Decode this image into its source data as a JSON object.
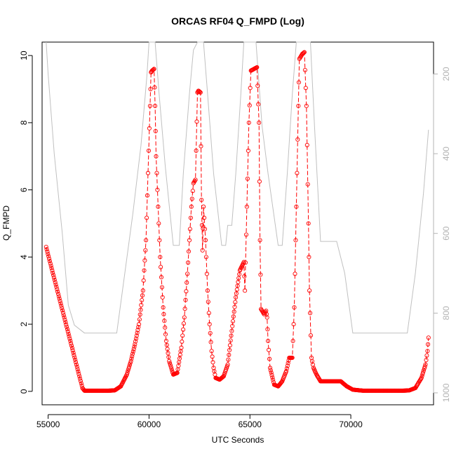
{
  "chart_data": {
    "type": "scatter",
    "title": "ORCAS RF04 Q_FMPD (Log)",
    "xlabel": "UTC Seconds",
    "ylabel": "Q_FMPD",
    "xlim": [
      54700,
      74100
    ],
    "ylim": [
      -0.4,
      10.4
    ],
    "x_ticks": [
      55000,
      60000,
      65000,
      70000
    ],
    "x_tick_labels": [
      "55000",
      "60000",
      "65000",
      "70000"
    ],
    "y_ticks": [
      0,
      2,
      4,
      6,
      8,
      10
    ],
    "y_tick_labels": [
      "0",
      "2",
      "4",
      "6",
      "8",
      "10"
    ],
    "right_axis": {
      "ticks": [
        200,
        400,
        600,
        800,
        1000
      ],
      "tick_labels": [
        "200",
        "400",
        "600",
        "800",
        "1000"
      ],
      "lim": [
        1030,
        120
      ],
      "color": "#b3b3b3"
    },
    "grid": false,
    "legend": "none",
    "series": [
      {
        "style": "points-with-dash-line",
        "color": "#ff0000",
        "points": [
          [
            54900,
            4.3
          ],
          [
            55200,
            3.6
          ],
          [
            55500,
            2.9
          ],
          [
            55800,
            2.2
          ],
          [
            56100,
            1.5
          ],
          [
            56400,
            0.8
          ],
          [
            56700,
            0.1
          ],
          [
            56800,
            0.02
          ],
          [
            57200,
            0.02
          ],
          [
            57600,
            0.02
          ],
          [
            58000,
            0.02
          ],
          [
            58300,
            0.03
          ],
          [
            58600,
            0.15
          ],
          [
            58900,
            0.5
          ],
          [
            59100,
            0.9
          ],
          [
            59300,
            1.4
          ],
          [
            59500,
            2.0
          ],
          [
            59700,
            3.0
          ],
          [
            59850,
            4.5
          ],
          [
            59950,
            6.5
          ],
          [
            60050,
            8.5
          ],
          [
            60100,
            9.5
          ],
          [
            60150,
            9.55
          ],
          [
            60250,
            9.6
          ],
          [
            60300,
            8.5
          ],
          [
            60350,
            7.0
          ],
          [
            60450,
            5.5
          ],
          [
            60550,
            4.0
          ],
          [
            60700,
            2.5
          ],
          [
            60850,
            1.5
          ],
          [
            61000,
            0.9
          ],
          [
            61200,
            0.5
          ],
          [
            61400,
            0.55
          ],
          [
            61600,
            1.3
          ],
          [
            61750,
            2.2
          ],
          [
            61900,
            3.5
          ],
          [
            62000,
            4.5
          ],
          [
            62100,
            5.5
          ],
          [
            62200,
            6.2
          ],
          [
            62300,
            6.3
          ],
          [
            62400,
            8.9
          ],
          [
            62450,
            8.95
          ],
          [
            62550,
            8.9
          ],
          [
            62600,
            5.7
          ],
          [
            62650,
            4.2
          ],
          [
            62700,
            5.5
          ],
          [
            62800,
            4.5
          ],
          [
            62900,
            3.0
          ],
          [
            63000,
            2.0
          ],
          [
            63100,
            1.2
          ],
          [
            63200,
            0.7
          ],
          [
            63300,
            0.4
          ],
          [
            63500,
            0.35
          ],
          [
            63700,
            0.45
          ],
          [
            63900,
            0.8
          ],
          [
            64100,
            1.8
          ],
          [
            64300,
            2.8
          ],
          [
            64500,
            3.6
          ],
          [
            64700,
            3.85
          ],
          [
            64750,
            3.0
          ],
          [
            64850,
            5.5
          ],
          [
            64950,
            8.0
          ],
          [
            65050,
            9.55
          ],
          [
            65200,
            9.6
          ],
          [
            65350,
            9.65
          ],
          [
            65450,
            8.0
          ],
          [
            65500,
            4.5
          ],
          [
            65550,
            2.45
          ],
          [
            65700,
            2.3
          ],
          [
            65800,
            2.4
          ],
          [
            65850,
            2.2
          ],
          [
            65900,
            1.5
          ],
          [
            66000,
            0.7
          ],
          [
            66200,
            0.2
          ],
          [
            66400,
            0.15
          ],
          [
            66600,
            0.3
          ],
          [
            66800,
            0.6
          ],
          [
            66950,
            1.0
          ],
          [
            67100,
            1.0
          ],
          [
            67200,
            2.5
          ],
          [
            67300,
            5.5
          ],
          [
            67400,
            8.5
          ],
          [
            67450,
            9.9
          ],
          [
            67600,
            10.05
          ],
          [
            67700,
            10.1
          ],
          [
            67800,
            8.5
          ],
          [
            67900,
            5.0
          ],
          [
            67950,
            3.0
          ],
          [
            68050,
            1.0
          ],
          [
            68150,
            0.7
          ],
          [
            68300,
            0.5
          ],
          [
            68500,
            0.3
          ],
          [
            69000,
            0.3
          ],
          [
            69500,
            0.3
          ],
          [
            69800,
            0.15
          ],
          [
            70100,
            0.05
          ],
          [
            70600,
            0.02
          ],
          [
            71100,
            0.02
          ],
          [
            71600,
            0.02
          ],
          [
            72100,
            0.02
          ],
          [
            72600,
            0.02
          ],
          [
            72900,
            0.03
          ],
          [
            73200,
            0.1
          ],
          [
            73500,
            0.4
          ],
          [
            73700,
            0.8
          ],
          [
            73800,
            1.2
          ],
          [
            73850,
            1.6
          ]
        ]
      },
      {
        "style": "line",
        "color": "#c0c0c0",
        "axis": "right",
        "points": [
          [
            54900,
            120
          ],
          [
            55000,
            200
          ],
          [
            55300,
            400
          ],
          [
            55700,
            600
          ],
          [
            56000,
            780
          ],
          [
            56300,
            830
          ],
          [
            56800,
            850
          ],
          [
            57300,
            850
          ],
          [
            58000,
            850
          ],
          [
            58400,
            850
          ],
          [
            58800,
            700
          ],
          [
            59200,
            550
          ],
          [
            59600,
            380
          ],
          [
            59900,
            200
          ],
          [
            60000,
            120
          ],
          [
            60300,
            120
          ],
          [
            60500,
            250
          ],
          [
            60800,
            430
          ],
          [
            61200,
            630
          ],
          [
            61500,
            630
          ],
          [
            61700,
            450
          ],
          [
            62000,
            250
          ],
          [
            62200,
            140
          ],
          [
            62400,
            120
          ],
          [
            62700,
            120
          ],
          [
            62900,
            250
          ],
          [
            63200,
            450
          ],
          [
            63600,
            630
          ],
          [
            63800,
            630
          ],
          [
            63900,
            580
          ],
          [
            64100,
            580
          ],
          [
            64300,
            450
          ],
          [
            64550,
            250
          ],
          [
            64700,
            120
          ],
          [
            65300,
            120
          ],
          [
            65600,
            330
          ],
          [
            65900,
            450
          ],
          [
            66400,
            630
          ],
          [
            66600,
            630
          ],
          [
            66850,
            450
          ],
          [
            67100,
            250
          ],
          [
            67300,
            120
          ],
          [
            68000,
            120
          ],
          [
            68200,
            330
          ],
          [
            68500,
            620
          ],
          [
            69300,
            620
          ],
          [
            69700,
            700
          ],
          [
            70100,
            850
          ],
          [
            70500,
            850
          ],
          [
            71200,
            850
          ],
          [
            72000,
            850
          ],
          [
            72800,
            850
          ],
          [
            73200,
            700
          ],
          [
            73600,
            500
          ],
          [
            73850,
            340
          ]
        ]
      }
    ]
  }
}
